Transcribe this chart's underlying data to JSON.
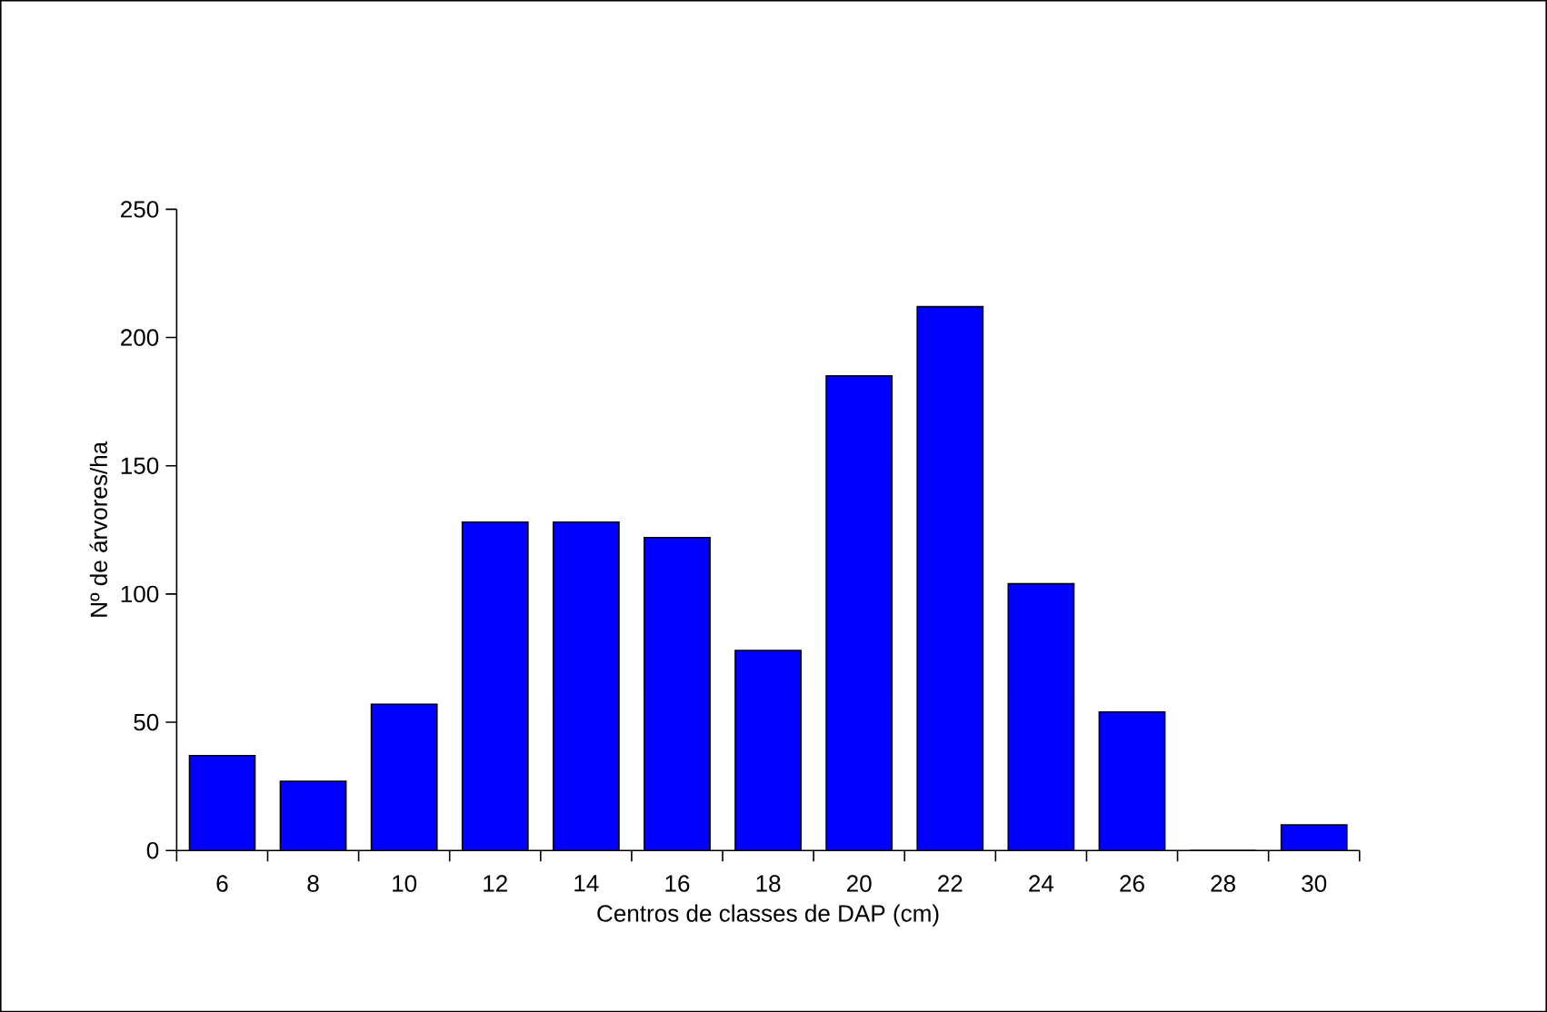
{
  "chart_data": {
    "type": "bar",
    "xlabel": "Centros de classes de DAP (cm)",
    "ylabel": "Nº de árvores/ha",
    "categories": [
      "6",
      "8",
      "10",
      "12",
      "14",
      "16",
      "18",
      "20",
      "22",
      "24",
      "26",
      "28",
      "30"
    ],
    "values": [
      37,
      27,
      57,
      128,
      128,
      122,
      78,
      185,
      212,
      104,
      54,
      0,
      10
    ],
    "color": "#0000ff",
    "ylim": [
      0,
      250
    ],
    "yticks": [
      0,
      50,
      100,
      150,
      200,
      250
    ],
    "grid": false
  }
}
